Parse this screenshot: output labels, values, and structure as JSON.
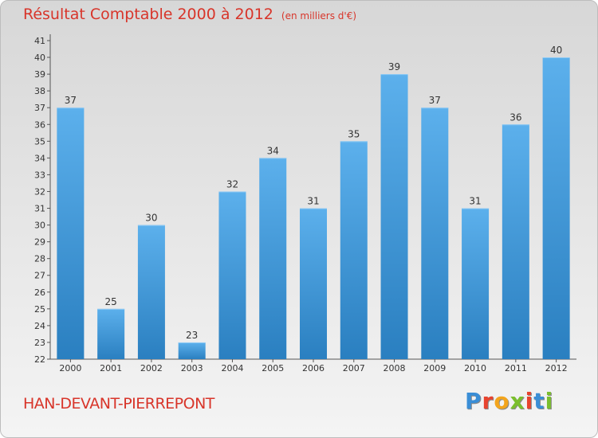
{
  "title": "Résultat Comptable 2000 à 2012",
  "subtitle": "(en milliers d'€)",
  "commune": "HAN-DEVANT-PIERREPONT",
  "logo": {
    "text": "Proxiti",
    "colors": [
      "#3a8ed6",
      "#e8432e",
      "#f3a51d",
      "#7bbf2d",
      "#e8432e",
      "#3a8ed6",
      "#7bbf2d"
    ]
  },
  "colors": {
    "title": "#d8352a",
    "bar_top": "#5cb0ec",
    "bar_bottom": "#2a7fc0",
    "axis": "#555555"
  },
  "chart_data": {
    "type": "bar",
    "title": "Résultat Comptable 2000 à 2012",
    "categories": [
      "2000",
      "2001",
      "2002",
      "2003",
      "2004",
      "2005",
      "2006",
      "2007",
      "2008",
      "2009",
      "2010",
      "2011",
      "2012"
    ],
    "values": [
      37,
      25,
      30,
      23,
      32,
      34,
      31,
      35,
      39,
      37,
      31,
      36,
      40
    ],
    "ylim": [
      22,
      41
    ],
    "yticks": [
      22,
      23,
      24,
      25,
      26,
      27,
      28,
      29,
      30,
      31,
      32,
      33,
      34,
      35,
      36,
      37,
      38,
      39,
      40,
      41
    ],
    "grid": false,
    "xlabel": "",
    "ylabel": ""
  }
}
